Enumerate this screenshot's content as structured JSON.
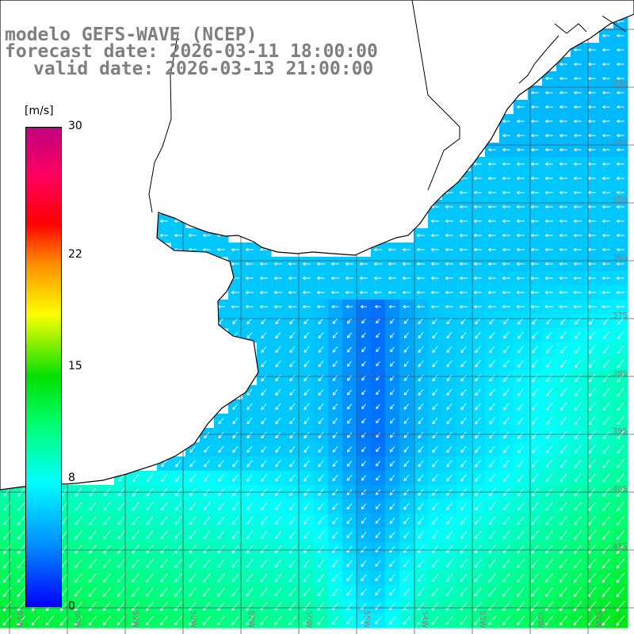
{
  "title": {
    "model": "modelo GEFS-WAVE (NCEP)",
    "forecast": "forecast date: 2026-03-11 18:00:00",
    "valid": "valid date: 2026-03-13 21:00:00"
  },
  "colorbar": {
    "unit": "[m/s]",
    "ticks": [
      {
        "value": 30,
        "label": "30"
      },
      {
        "value": 22,
        "label": "22"
      },
      {
        "value": 15,
        "label": "15"
      },
      {
        "value": 8,
        "label": "8"
      },
      {
        "value": 0,
        "label": "0"
      }
    ]
  },
  "map": {
    "lon_labels": [
      "61W",
      "60W",
      "59W",
      "58W",
      "57W",
      "56W",
      "55W",
      "54W",
      "53W",
      "52W",
      "51W"
    ],
    "lat_labels": [
      "33S",
      "34S",
      "35S",
      "36S",
      "37S",
      "38S",
      "39S",
      "40S",
      "41S"
    ],
    "colors": {
      "land": "#ffffff",
      "coast": "#000000",
      "grid": "#555555",
      "arrow": "#ffffff",
      "label": "#808080"
    }
  }
}
